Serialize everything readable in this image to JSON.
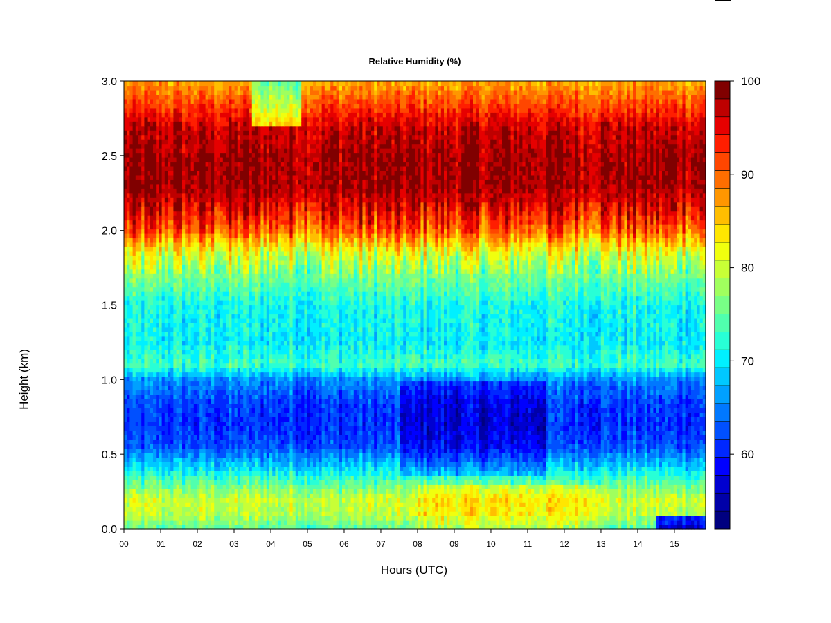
{
  "chart_data": {
    "type": "heatmap",
    "title": "Relative Humidity (%)",
    "xlabel": "Hours (UTC)",
    "ylabel": "Height (km)",
    "x_ticks": [
      "00",
      "01",
      "02",
      "03",
      "04",
      "05",
      "06",
      "07",
      "08",
      "09",
      "10",
      "11",
      "12",
      "13",
      "14",
      "15"
    ],
    "x_range": [
      0,
      15.85
    ],
    "y_ticks": [
      "0.0",
      "0.5",
      "1.0",
      "1.5",
      "2.0",
      "2.5",
      "3.0"
    ],
    "y_range": [
      0,
      3.0
    ],
    "colorbar": {
      "min": 52,
      "max": 100,
      "step": 2,
      "tick_values": [
        60,
        70,
        80,
        90,
        100
      ],
      "tick_labels": [
        "60",
        "70",
        "80",
        "90",
        "100"
      ],
      "colors": [
        "#000080",
        "#0000a8",
        "#0000d0",
        "#0000ff",
        "#0028ff",
        "#0050ff",
        "#0078ff",
        "#00a0ff",
        "#00c8ff",
        "#00f0ff",
        "#28ffd6",
        "#50ffae",
        "#78ff86",
        "#a0ff5e",
        "#c8ff36",
        "#f0ff0e",
        "#ffe600",
        "#ffbe00",
        "#ff9600",
        "#ff6e00",
        "#ff4600",
        "#ff1e00",
        "#e60000",
        "#be0000",
        "#800000"
      ]
    },
    "profile": {
      "heights_km": [
        0.0,
        0.1,
        0.2,
        0.3,
        0.45,
        0.55,
        0.7,
        0.85,
        1.0,
        1.1,
        1.25,
        1.5,
        1.7,
        1.85,
        2.0,
        2.15,
        2.3,
        2.5,
        2.7,
        2.85,
        3.0
      ],
      "rh_percent": [
        75,
        80,
        81,
        76,
        68,
        63,
        61,
        62,
        66,
        74,
        71,
        72,
        77,
        82,
        92,
        97,
        100,
        100,
        98,
        93,
        88
      ]
    }
  }
}
